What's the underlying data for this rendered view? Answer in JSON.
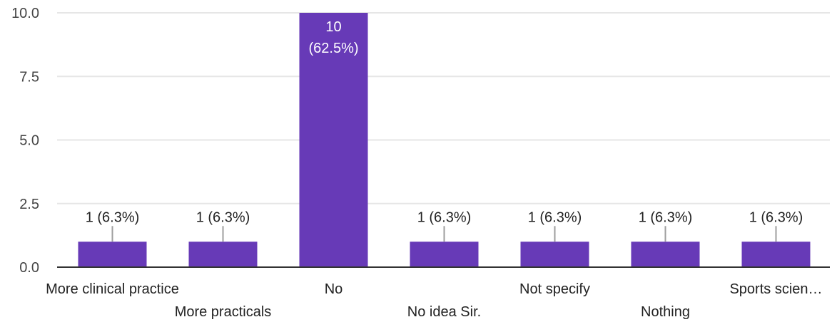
{
  "chart_data": {
    "type": "bar",
    "categories": [
      "More clinical practice",
      "More practicals",
      "No",
      "No idea Sir.",
      "Not specify",
      "Nothing",
      "Sports scien…"
    ],
    "values": [
      1,
      1,
      10,
      1,
      1,
      1,
      1
    ],
    "data_labels": [
      "1 (6.3%)",
      "1 (6.3%)",
      "10\n(62.5%)",
      "1 (6.3%)",
      "1 (6.3%)",
      "1 (6.3%)",
      "1 (6.3%)"
    ],
    "y_ticks": [
      "0.0",
      "2.5",
      "5.0",
      "7.5",
      "10.0"
    ],
    "ylim": [
      0,
      10
    ],
    "grid": true,
    "colors": {
      "bar": "#673ab7",
      "grid": "#e6e6e6",
      "axis": "#333333",
      "leader": "#9e9e9e"
    }
  }
}
